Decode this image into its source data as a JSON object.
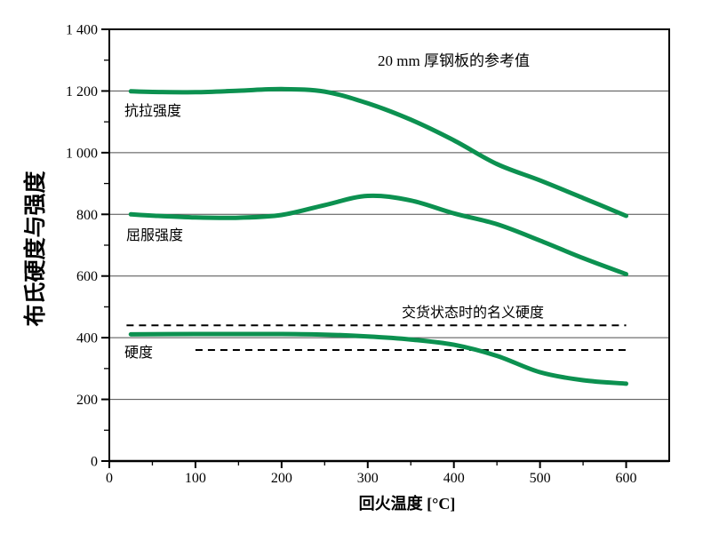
{
  "colors": {
    "curve_green": "#0c9150",
    "axis": "#000000",
    "grid": "#4d4d4d",
    "dashed_reference": "#000000",
    "background": "#ffffff"
  },
  "chart_data": {
    "type": "line",
    "title": "",
    "annotation": "20 mm 厚钢板的参考值",
    "xlabel": "回火温度 [°C]",
    "ylabel": "布氏硬度与强度",
    "xlim": [
      0,
      650
    ],
    "ylim": [
      0,
      1400
    ],
    "grid": "horizontal-major-only",
    "legend_position": "inline-curve-labels",
    "x_major_ticks": [
      0,
      100,
      200,
      300,
      400,
      500,
      600
    ],
    "x_tick_labels": [
      "0",
      "100",
      "200",
      "300",
      "400",
      "500",
      "600"
    ],
    "x_minor_step": 50,
    "y_major_ticks": [
      0,
      200,
      400,
      600,
      800,
      1000,
      1200,
      1400
    ],
    "y_tick_labels": [
      "0",
      "200",
      "400",
      "600",
      "800",
      "1 000",
      "1 200",
      "1 400"
    ],
    "y_minor_step": 100,
    "series": [
      {
        "name": "抗拉强度",
        "color": "#0c9150",
        "style": "solid",
        "x": [
          25,
          50,
          100,
          150,
          200,
          250,
          300,
          350,
          400,
          450,
          500,
          550,
          600
        ],
        "y": [
          1199,
          1197,
          1196,
          1201,
          1206,
          1198,
          1160,
          1107,
          1040,
          963,
          910,
          853,
          795
        ]
      },
      {
        "name": "屈服强度",
        "color": "#0c9150",
        "style": "solid",
        "x": [
          25,
          50,
          100,
          150,
          200,
          250,
          300,
          350,
          400,
          450,
          500,
          550,
          600
        ],
        "y": [
          800,
          796,
          790,
          789,
          798,
          830,
          860,
          845,
          803,
          768,
          715,
          658,
          606
        ]
      },
      {
        "name": "硬度",
        "color": "#0c9150",
        "style": "solid",
        "x": [
          25,
          100,
          150,
          200,
          250,
          300,
          350,
          400,
          450,
          500,
          550,
          600
        ],
        "y": [
          411,
          412,
          412,
          412,
          410,
          404,
          394,
          377,
          341,
          288,
          262,
          251
        ]
      }
    ],
    "reference_band": {
      "label": "交货状态时的名义硬度",
      "style": "dashed",
      "color": "#000000",
      "upper_value": 440,
      "upper_x_range": [
        20,
        600
      ],
      "lower_value": 360,
      "lower_x_range": [
        100,
        600
      ]
    }
  }
}
